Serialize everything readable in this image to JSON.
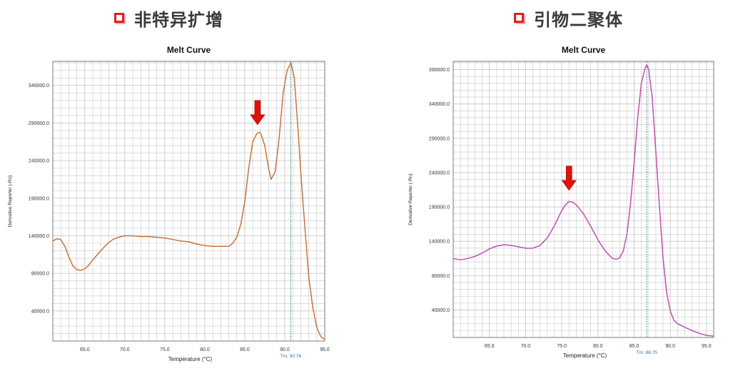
{
  "headings": {
    "left": "非特异扩增",
    "right": "引物二聚体"
  },
  "colors": {
    "left_curve": "#c8743c",
    "right_curve": "#c24fb0",
    "grid": "#c8c8c8",
    "tm_line": "#3c8c78",
    "arrow": "#e0100a",
    "heading_icon": "#e02020"
  },
  "chart_data": [
    {
      "type": "line",
      "title": "Melt Curve",
      "xlabel": "Temperature (°C)",
      "ylabel": "Derivative Reporter (-Rn)",
      "xlim": [
        61,
        95
      ],
      "ylim": [
        0,
        372000
      ],
      "xticks": [
        65,
        70,
        75,
        80,
        85,
        90,
        95
      ],
      "xtick_labels": [
        "65.0",
        "70.0",
        "75.0",
        "80.0",
        "85.0",
        "90.0",
        "95.0"
      ],
      "yticks": [
        40000,
        90000,
        140000,
        190000,
        240000,
        290000,
        340000
      ],
      "ytick_labels": [
        "40000.0",
        "90000.0",
        "140000.0",
        "190000.0",
        "240000.0",
        "290000.0",
        "340000.0"
      ],
      "tm_label": "Tm: 90.76",
      "tm_value": 90.76,
      "annotation": {
        "type": "arrow",
        "x": 86.6,
        "y": 282000
      },
      "series": [
        {
          "x": [
            61,
            61.5,
            62,
            62.5,
            63,
            63.5,
            64,
            64.5,
            65,
            65.5,
            66,
            66.5,
            67,
            67.5,
            68,
            68.5,
            69,
            69.5,
            70,
            71,
            72,
            73,
            74,
            75,
            76,
            77,
            78,
            79,
            80,
            81,
            82,
            83,
            83.5,
            84,
            84.5,
            85,
            85.5,
            86,
            86.5,
            86.8,
            87,
            87.5,
            88,
            88.3,
            88.8,
            89.3,
            89.8,
            90.3,
            90.76,
            91.2,
            91.6,
            92.1,
            92.6,
            93,
            93.5,
            94,
            94.5,
            95
          ],
          "y": [
            133000,
            136000,
            135000,
            126000,
            112000,
            100000,
            95000,
            94000,
            96000,
            101000,
            108000,
            114000,
            120000,
            126000,
            131000,
            135000,
            137000,
            139000,
            140000,
            140000,
            139000,
            139000,
            138000,
            137000,
            135000,
            133000,
            132000,
            129000,
            127000,
            126000,
            126000,
            126000,
            130000,
            138000,
            155000,
            185000,
            230000,
            265000,
            276000,
            278000,
            276000,
            260000,
            228000,
            215000,
            225000,
            270000,
            330000,
            360000,
            370000,
            350000,
            290000,
            210000,
            140000,
            85000,
            45000,
            18000,
            6000,
            2000
          ]
        }
      ]
    },
    {
      "type": "line",
      "title": "Melt Curve",
      "xlabel": "Temperature (°C)",
      "ylabel": "Derivative Reporter (-Rn)",
      "xlim": [
        60,
        96
      ],
      "ylim": [
        0,
        402000
      ],
      "xticks": [
        65,
        70,
        75,
        80,
        85,
        90,
        95
      ],
      "xtick_labels": [
        "65.0",
        "70.0",
        "75.0",
        "80.0",
        "85.0",
        "90.0",
        "95.0"
      ],
      "yticks": [
        40000,
        90000,
        140000,
        190000,
        240000,
        290000,
        340000,
        390000
      ],
      "ytick_labels": [
        "40000.0",
        "90000.0",
        "140000.0",
        "190000.0",
        "240000.0",
        "290000.0",
        "340000.0",
        "390000.0"
      ],
      "tm_label": "Tm: 86.75",
      "tm_value": 86.75,
      "annotation": {
        "type": "arrow",
        "x": 76,
        "y": 208000
      },
      "series": [
        {
          "x": [
            60,
            61,
            62,
            63,
            64,
            65,
            66,
            67,
            68,
            69,
            70,
            71,
            72,
            73,
            74,
            75,
            75.5,
            76,
            76.5,
            77,
            78,
            79,
            80,
            81,
            82,
            82.5,
            83,
            83.5,
            84,
            84.5,
            85,
            85.5,
            86,
            86.5,
            86.75,
            87,
            87.5,
            88,
            88.5,
            89,
            89.5,
            90,
            90.5,
            91,
            92,
            93,
            94,
            95,
            96
          ],
          "y": [
            115000,
            113000,
            115000,
            118000,
            123000,
            129000,
            133000,
            135000,
            134000,
            132000,
            130000,
            130000,
            134000,
            145000,
            163000,
            185000,
            193000,
            198000,
            197000,
            193000,
            180000,
            162000,
            142000,
            126000,
            115000,
            114000,
            116000,
            126000,
            150000,
            195000,
            255000,
            320000,
            370000,
            392000,
            397000,
            390000,
            350000,
            270000,
            190000,
            115000,
            65000,
            38000,
            25000,
            20000,
            15000,
            10000,
            6000,
            3000,
            2000
          ]
        }
      ]
    }
  ]
}
